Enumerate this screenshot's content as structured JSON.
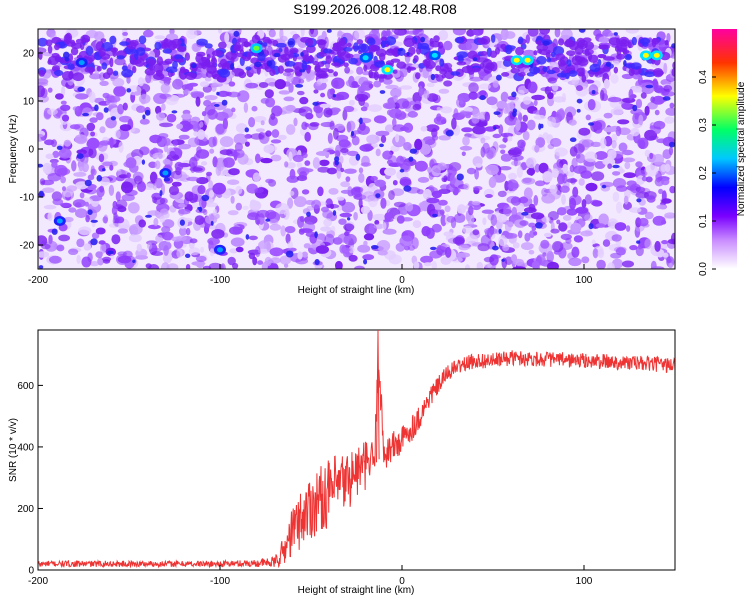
{
  "title": "S199.2026.008.12.48.R08",
  "chart_data": [
    {
      "type": "heatmap",
      "xlabel": "Height of straight line (km)",
      "ylabel": "Frequency (Hz)",
      "xlim": [
        -200,
        150
      ],
      "ylim": [
        -25,
        25
      ],
      "x_ticks": [
        -200,
        -100,
        0,
        100
      ],
      "y_ticks": [
        20,
        10,
        0,
        -10,
        -20
      ],
      "grid": false,
      "colorbar": {
        "label": "Normalized spectral amplitude",
        "range": [
          0.0,
          0.5
        ],
        "ticks": [
          0.0,
          0.1,
          0.2,
          0.3,
          0.4
        ],
        "colormap": [
          "#ffffff",
          "#a040ff",
          "#0000ff",
          "#00c8ff",
          "#00ff00",
          "#ffff00",
          "#ff0000",
          "#ff00ff"
        ]
      },
      "hot_spots": [
        {
          "x": -80,
          "y": 21,
          "value": 0.3
        },
        {
          "x": -20,
          "y": 19,
          "value": 0.25
        },
        {
          "x": -8,
          "y": 16.5,
          "value": 0.4
        },
        {
          "x": 18,
          "y": 19.5,
          "value": 0.22
        },
        {
          "x": 63,
          "y": 18.5,
          "value": 0.38
        },
        {
          "x": 69,
          "y": 18.5,
          "value": 0.4
        },
        {
          "x": 134,
          "y": 19.5,
          "value": 0.42
        },
        {
          "x": 140,
          "y": 19.5,
          "value": 0.4
        },
        {
          "x": -176,
          "y": 18,
          "value": 0.15
        },
        {
          "x": -130,
          "y": -5,
          "value": 0.12
        },
        {
          "x": -188,
          "y": -15,
          "value": 0.12
        },
        {
          "x": -100,
          "y": -21,
          "value": 0.1
        }
      ]
    },
    {
      "type": "line",
      "xlabel": "Height of straight line (km)",
      "ylabel": "SNR (10 * v/v)",
      "xlim": [
        -200,
        150
      ],
      "ylim": [
        0,
        780
      ],
      "x_ticks": [
        -200,
        -100,
        0,
        100
      ],
      "y_ticks": [
        0,
        200,
        400,
        600
      ],
      "color": "#ee3333",
      "x": [
        -200,
        -150,
        -100,
        -80,
        -70,
        -65,
        -60,
        -55,
        -50,
        -45,
        -40,
        -35,
        -30,
        -25,
        -20,
        -15,
        -13,
        -10,
        -5,
        0,
        5,
        10,
        15,
        20,
        25,
        30,
        40,
        50,
        60,
        80,
        100,
        120,
        150
      ],
      "y": [
        20,
        20,
        20,
        22,
        25,
        60,
        130,
        170,
        210,
        230,
        250,
        270,
        290,
        320,
        340,
        360,
        700,
        380,
        400,
        420,
        460,
        500,
        560,
        600,
        640,
        660,
        680,
        680,
        690,
        685,
        680,
        675,
        665
      ],
      "noise_amplitude": [
        10,
        10,
        10,
        12,
        18,
        50,
        80,
        100,
        110,
        110,
        110,
        110,
        100,
        90,
        80,
        70,
        60,
        60,
        55,
        50,
        45,
        40,
        35,
        30,
        28,
        25,
        25,
        25,
        25,
        25,
        25,
        25,
        25
      ]
    }
  ]
}
